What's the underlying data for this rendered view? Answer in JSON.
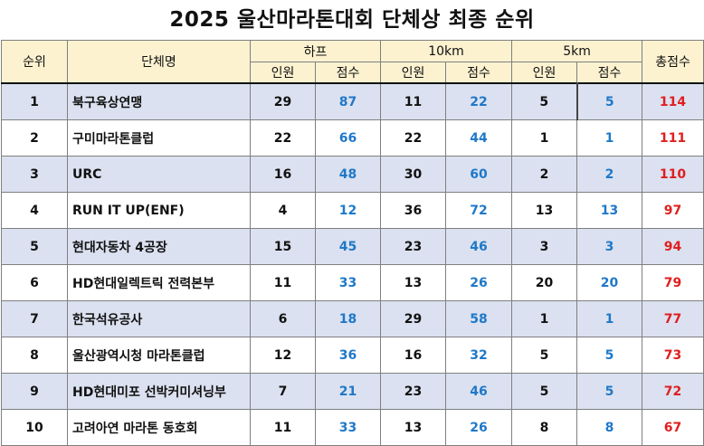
{
  "title": "2025 울산마라톤대회 단체상 최종 순위",
  "header": {
    "rank": "순위",
    "team": "단체명",
    "half": "하프",
    "tenk": "10km",
    "fivek": "5km",
    "total": "총점수",
    "count": "인원",
    "score": "점수"
  },
  "rows": [
    {
      "rank": "1",
      "team": "북구육상연맹",
      "half_count": "29",
      "half_score": "87",
      "tenk_count": "11",
      "tenk_score": "22",
      "fivek_count": "5",
      "fivek_score": "5",
      "total": "114"
    },
    {
      "rank": "2",
      "team": "구미마라톤클럽",
      "half_count": "22",
      "half_score": "66",
      "tenk_count": "22",
      "tenk_score": "44",
      "fivek_count": "1",
      "fivek_score": "1",
      "total": "111"
    },
    {
      "rank": "3",
      "team": "URC",
      "half_count": "16",
      "half_score": "48",
      "tenk_count": "30",
      "tenk_score": "60",
      "fivek_count": "2",
      "fivek_score": "2",
      "total": "110"
    },
    {
      "rank": "4",
      "team": "RUN IT UP(ENF)",
      "half_count": "4",
      "half_score": "12",
      "tenk_count": "36",
      "tenk_score": "72",
      "fivek_count": "13",
      "fivek_score": "13",
      "total": "97"
    },
    {
      "rank": "5",
      "team": "현대자동차 4공장",
      "half_count": "15",
      "half_score": "45",
      "tenk_count": "23",
      "tenk_score": "46",
      "fivek_count": "3",
      "fivek_score": "3",
      "total": "94"
    },
    {
      "rank": "6",
      "team": "HD현대일렉트릭 전력본부",
      "half_count": "11",
      "half_score": "33",
      "tenk_count": "13",
      "tenk_score": "26",
      "fivek_count": "20",
      "fivek_score": "20",
      "total": "79"
    },
    {
      "rank": "7",
      "team": "한국석유공사",
      "half_count": "6",
      "half_score": "18",
      "tenk_count": "29",
      "tenk_score": "58",
      "fivek_count": "1",
      "fivek_score": "1",
      "total": "77"
    },
    {
      "rank": "8",
      "team": "울산광역시청 마라톤클럽",
      "half_count": "12",
      "half_score": "36",
      "tenk_count": "16",
      "tenk_score": "32",
      "fivek_count": "5",
      "fivek_score": "5",
      "total": "73"
    },
    {
      "rank": "9",
      "team": "HD현대미포 선박커미셔닝부",
      "half_count": "7",
      "half_score": "21",
      "tenk_count": "23",
      "tenk_score": "46",
      "fivek_count": "5",
      "fivek_score": "5",
      "total": "72"
    },
    {
      "rank": "10",
      "team": "고려아연 마라톤 동호회",
      "half_count": "11",
      "half_score": "33",
      "tenk_count": "13",
      "tenk_score": "26",
      "fivek_count": "8",
      "fivek_score": "8",
      "total": "67"
    }
  ],
  "colors": {
    "header_bg": "#fdf2d0",
    "row_alt_bg": "#dbe1f0",
    "score_text": "#1f78c8",
    "total_text": "#e01e1e"
  }
}
